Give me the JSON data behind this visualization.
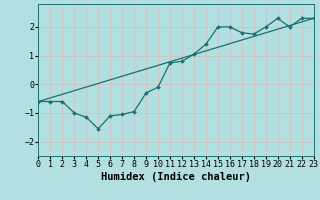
{
  "title": "",
  "xlabel": "Humidex (Indice chaleur)",
  "ylabel": "",
  "bg_color": "#b2dfdf",
  "grid_color": "#c8e8e8",
  "line_color": "#1a7070",
  "x_min": 0,
  "x_max": 23,
  "y_min": -2.5,
  "y_max": 2.8,
  "series1_x": [
    0,
    1,
    2,
    3,
    4,
    5,
    6,
    7,
    8,
    9,
    10,
    11,
    12,
    13,
    14,
    15,
    16,
    17,
    18,
    19,
    20,
    21,
    22,
    23
  ],
  "series1_y": [
    -0.6,
    -0.6,
    -0.6,
    -1.0,
    -1.15,
    -1.55,
    -1.1,
    -1.05,
    -0.95,
    -0.3,
    -0.1,
    0.75,
    0.8,
    1.05,
    1.4,
    2.0,
    2.0,
    1.8,
    1.75,
    2.0,
    2.3,
    2.0,
    2.3,
    2.3
  ],
  "series2_x": [
    0,
    23
  ],
  "series2_y": [
    -0.6,
    2.3
  ],
  "tick_fontsize": 6,
  "label_fontsize": 7.5
}
